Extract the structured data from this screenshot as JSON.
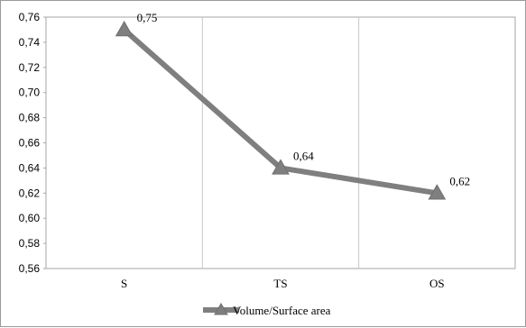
{
  "chart_data": {
    "type": "line",
    "title": "",
    "xlabel": "",
    "ylabel": "",
    "categories": [
      "S",
      "TS",
      "OS"
    ],
    "series": [
      {
        "name": "Volume/Surface area",
        "values": [
          0.75,
          0.64,
          0.62
        ],
        "value_labels": [
          "0,75",
          "0,64",
          "0,62"
        ],
        "color": "#7f7f7f",
        "marker": "triangle"
      }
    ],
    "ylim": [
      0.56,
      0.76
    ],
    "yticks": [
      "0,76",
      "0,74",
      "0,72",
      "0,70",
      "0,68",
      "0,66",
      "0,64",
      "0,62",
      "0,60",
      "0,58",
      "0,56"
    ],
    "grid": "vertical",
    "legend": "bottom"
  }
}
